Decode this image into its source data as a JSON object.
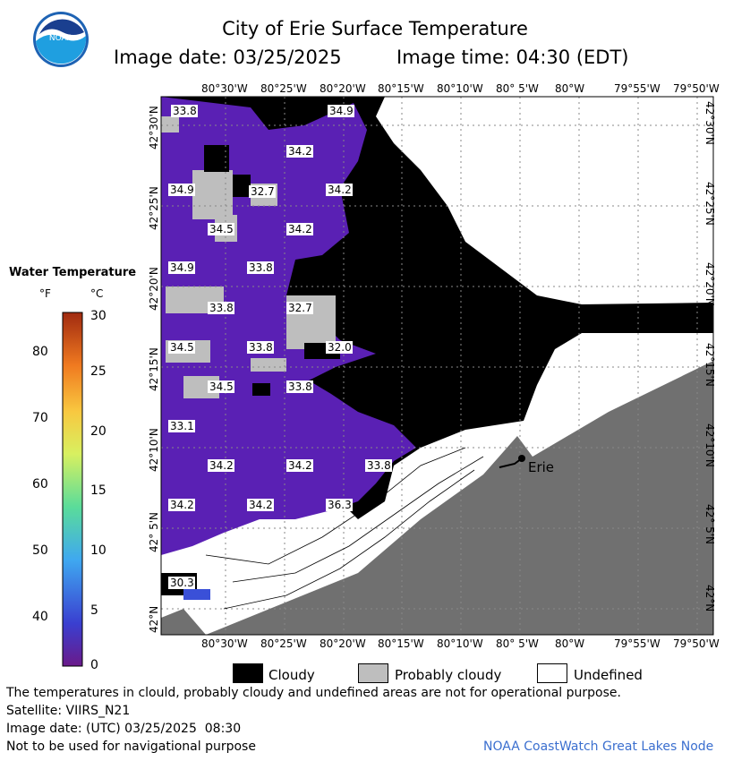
{
  "header": {
    "title": "City of Erie Surface Temperature",
    "image_date": "Image date: 03/25/2025",
    "image_time": "Image time: 04:30 (EDT)",
    "logo_text": "NOAA"
  },
  "map": {
    "lon_labels": [
      "80°30'W",
      "80°25'W",
      "80°20'W",
      "80°15'W",
      "80°10'W",
      "80° 5'W",
      "80°W",
      "79°55'W",
      "79°50'W"
    ],
    "lat_labels": [
      "42°30'N",
      "42°25'N",
      "42°20'N",
      "42°15'N",
      "42°10'N",
      "42° 5'N",
      "42°N"
    ],
    "city_label": "Erie",
    "temperature_labels": [
      "33.8",
      "34.9",
      "34.2",
      "34.9",
      "32.7",
      "34.2",
      "34.5",
      "34.2",
      "34.9",
      "33.8",
      "33.8",
      "32.7",
      "34.5",
      "33.8",
      "32.0",
      "34.5",
      "33.8",
      "33.1",
      "34.2",
      "34.2",
      "33.8",
      "34.2",
      "34.2",
      "36.3",
      "30.3"
    ]
  },
  "legend": {
    "title": "Water Temperature",
    "unit_f": "°F",
    "unit_c": "°C",
    "f_ticks": [
      "80",
      "70",
      "60",
      "50",
      "40"
    ],
    "c_ticks": [
      "30",
      "25",
      "20",
      "15",
      "10",
      "5",
      "0"
    ]
  },
  "key": {
    "cloudy": "Cloudy",
    "probably_cloudy": "Probably cloudy",
    "undefined": "Undefined",
    "cloudy_color": "#000000",
    "probably_cloudy_color": "#bebebe",
    "undefined_color": "#ffffff",
    "land_color": "#707070",
    "water_color": "#5a20b4"
  },
  "footer": {
    "note": "The temperatures in clould, probably cloudy and undefined areas are not for operational purpose.",
    "satellite": "Satellite: VIIRS_N21",
    "utc_date": "Image date: (UTC) 03/25/2025  08:30",
    "nav": "Not to be used for navigational purpose",
    "credit": "NOAA CoastWatch Great Lakes Node"
  }
}
